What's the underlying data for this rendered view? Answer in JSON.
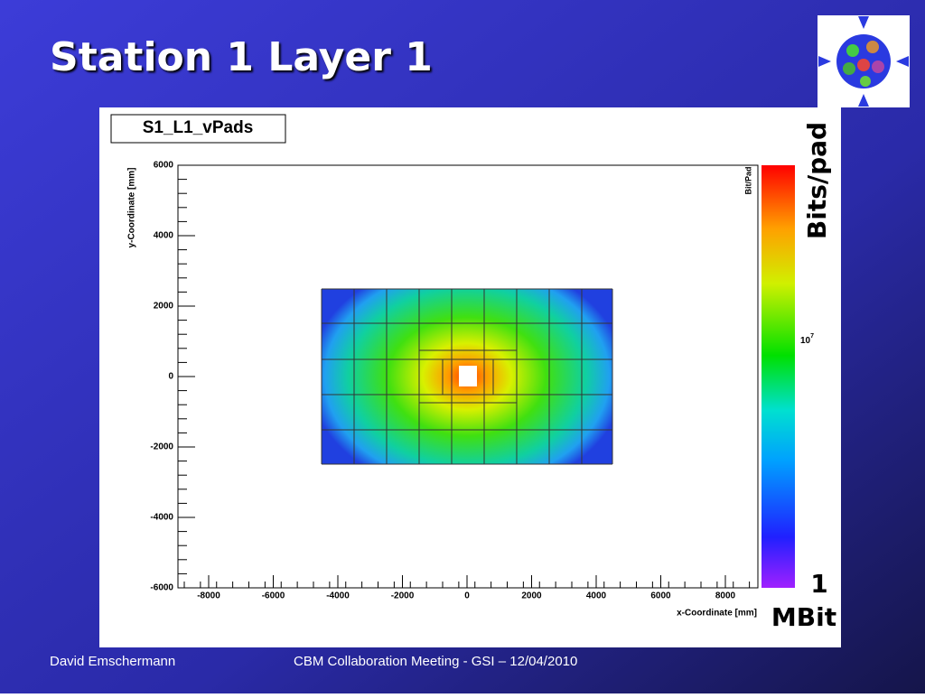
{
  "title": "Station 1 Layer 1",
  "footer": {
    "author": "David Emschermann",
    "event": "CBM Collaboration Meeting - GSI – 12/04/2010"
  },
  "plot": {
    "name": "S1_L1_vPads",
    "x_axis": {
      "label": "x-Coordinate [mm]",
      "ticks": [
        "-8000",
        "-6000",
        "-4000",
        "-2000",
        "0",
        "2000",
        "4000",
        "6000",
        "8000"
      ]
    },
    "y_axis": {
      "label": "y-Coordinate [mm]",
      "ticks": [
        "6000",
        "4000",
        "2000",
        "0",
        "-2000",
        "-4000",
        "-6000"
      ]
    },
    "colorbar": {
      "label": "Bit/Pad",
      "tick_base": "10",
      "tick_exponent": "7"
    }
  },
  "annotations": {
    "unit": "Bits/pad",
    "min_value": "1",
    "min_unit": "MBit"
  }
}
